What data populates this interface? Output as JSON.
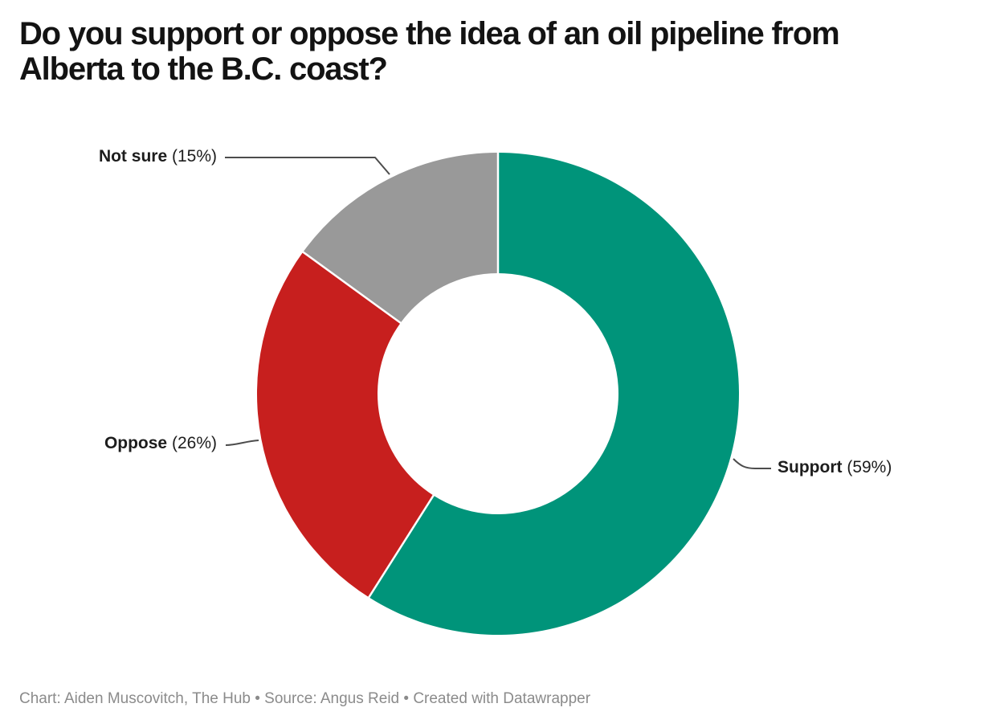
{
  "chart_data": {
    "type": "pie",
    "subtype": "donut",
    "title": "Do you support or oppose the idea of an oil pipeline from Alberta to the B.C. coast?",
    "title_lines": [
      "Do you support or oppose the idea of an oil pipeline from",
      "Alberta to the B.C. coast?"
    ],
    "categories": [
      "Support",
      "Oppose",
      "Not sure"
    ],
    "values": [
      59,
      26,
      15
    ],
    "unit": "%",
    "start_angle_deg": 0,
    "direction": "clockwise",
    "inner_radius_ratio": 0.5,
    "legend_position": "outside-labels-with-leader-lines",
    "slices": [
      {
        "label": "Support",
        "value": 59,
        "value_text": "(59%)",
        "color": "#00947a"
      },
      {
        "label": "Oppose",
        "value": 26,
        "value_text": "(26%)",
        "color": "#c71f1e"
      },
      {
        "label": "Not sure",
        "value": 15,
        "value_text": "(15%)",
        "color": "#999999"
      }
    ]
  },
  "footer": {
    "text": "Chart: Aiden Muscovitch, The Hub • Source: Angus Reid • Created with Datawrapper"
  },
  "colors": {
    "background": "#ffffff",
    "title_text": "#131313",
    "label_text": "#1d1d1d",
    "footer_text": "#8b8b8b",
    "leader_line": "#4c4c4c",
    "slice_separator": "#ffffff"
  }
}
